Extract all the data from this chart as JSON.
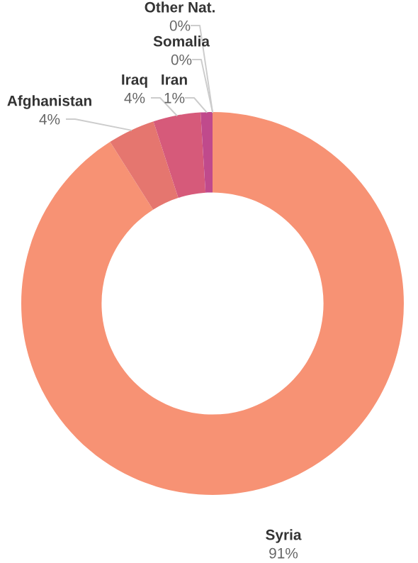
{
  "chart_data": {
    "type": "donut",
    "categories": [
      "Syria",
      "Afghanistan",
      "Iraq",
      "Iran",
      "Somalia",
      "Other Nat."
    ],
    "values": [
      91,
      4,
      4,
      1,
      0,
      0
    ],
    "value_labels": [
      "91%",
      "4%",
      "4%",
      "1%",
      "0%",
      "0%"
    ],
    "colors": [
      "#f79274",
      "#e5766f",
      "#d65a7a",
      "#c04a8c",
      "#7b3a90",
      "#4b2a7c"
    ],
    "legend": false
  }
}
